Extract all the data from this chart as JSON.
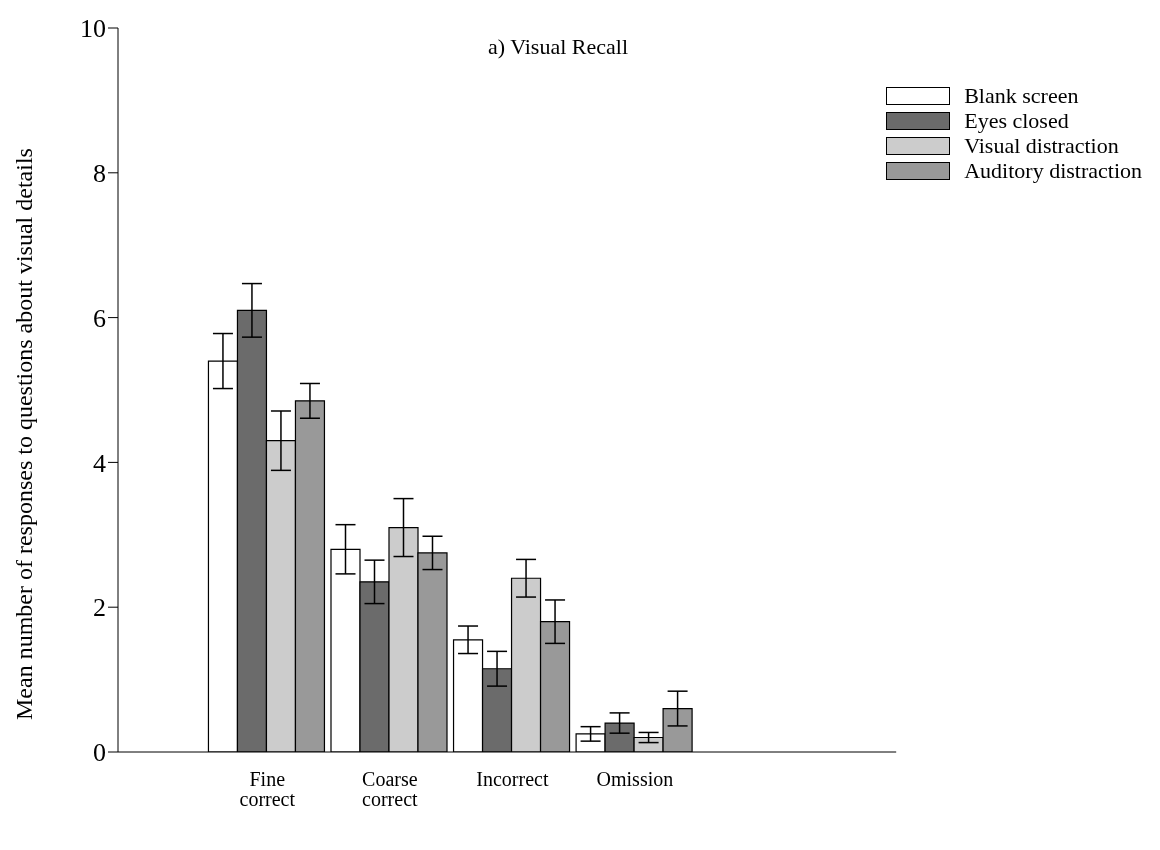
{
  "chart_data": {
    "type": "bar",
    "title": "a) Visual Recall",
    "ylabel": "Mean number of responses to questions about visual details",
    "categories": [
      "Fine correct",
      "Coarse correct",
      "Incorrect",
      "Omission"
    ],
    "series": [
      {
        "name": "Blank screen",
        "color": "#ffffff",
        "values": [
          5.4,
          2.8,
          1.55,
          0.25
        ],
        "errors": [
          0.38,
          0.34,
          0.19,
          0.1
        ]
      },
      {
        "name": "Eyes closed",
        "color": "#6b6b6b",
        "values": [
          6.1,
          2.35,
          1.15,
          0.4
        ],
        "errors": [
          0.37,
          0.3,
          0.24,
          0.14
        ]
      },
      {
        "name": "Visual distraction",
        "color": "#cccccc",
        "values": [
          4.3,
          3.1,
          2.4,
          0.2
        ],
        "errors": [
          0.41,
          0.4,
          0.26,
          0.07
        ]
      },
      {
        "name": "Auditory distraction",
        "color": "#999999",
        "values": [
          4.85,
          2.75,
          1.8,
          0.6
        ],
        "errors": [
          0.24,
          0.23,
          0.3,
          0.24
        ]
      }
    ],
    "ylim": [
      0,
      10
    ],
    "yticks": [
      0,
      2,
      4,
      6,
      8,
      10
    ],
    "grid": false,
    "legend": "top right"
  }
}
